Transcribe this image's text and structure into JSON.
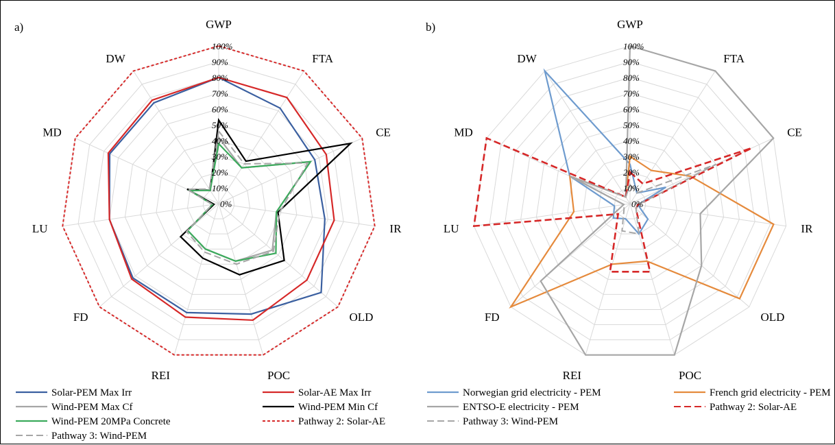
{
  "chart_data": [
    {
      "panel_label": "a)",
      "type": "radar",
      "axes": [
        "GWP",
        "FTA",
        "CE",
        "IR",
        "OLD",
        "POC",
        "REI",
        "FD",
        "LU",
        "MD",
        "DW"
      ],
      "tick_labels": [
        "0%",
        "10%",
        "20%",
        "30%",
        "40%",
        "50%",
        "60%",
        "70%",
        "80%",
        "90%",
        "100%"
      ],
      "rlim": [
        0,
        100
      ],
      "grid": true,
      "legend_position": "bottom",
      "series": [
        {
          "name": "Solar-PEM Max Irr",
          "color": "#3A5FA0",
          "dash": "solid",
          "values": [
            80,
            72,
            67,
            68,
            86,
            73,
            72,
            72,
            70,
            76,
            76
          ]
        },
        {
          "name": "Solar-AE Max Irr",
          "color": "#D62828",
          "dash": "solid",
          "values": [
            80,
            80,
            75,
            74,
            74,
            77,
            75,
            73,
            70,
            77,
            78
          ]
        },
        {
          "name": "Wind-PEM Max Cf",
          "color": "#A6A6A6",
          "dash": "solid",
          "values": [
            42,
            27,
            64,
            37,
            45,
            38,
            30,
            26,
            4,
            20,
            10
          ]
        },
        {
          "name": "Wind-PEM Min Cf",
          "color": "#000000",
          "dash": "solid",
          "values": [
            53,
            32,
            92,
            38,
            55,
            47,
            36,
            32,
            3,
            22,
            10
          ]
        },
        {
          "name": "Wind-PEM 20MPa Concrete",
          "color": "#3BAA5C",
          "dash": "solid",
          "values": [
            38,
            27,
            64,
            37,
            48,
            38,
            30,
            26,
            4,
            20,
            10
          ]
        },
        {
          "name": "Pathway 2: Solar-AE",
          "color": "#D62828",
          "dash": "dotted",
          "values": [
            100,
            100,
            100,
            100,
            100,
            100,
            100,
            100,
            100,
            100,
            100
          ]
        },
        {
          "name": "Pathway 3: Wind-PEM",
          "color": "#A6A6A6",
          "dash": "dashed",
          "values": [
            46,
            30,
            62,
            39,
            46,
            40,
            32,
            27,
            4,
            22,
            11
          ]
        }
      ]
    },
    {
      "panel_label": "b)",
      "type": "radar",
      "axes": [
        "GWP",
        "FTA",
        "CE",
        "IR",
        "OLD",
        "POC",
        "REI",
        "FD",
        "LU",
        "MD",
        "DW"
      ],
      "tick_labels": [
        "0%",
        "10%",
        "20%",
        "30%",
        "40%",
        "50%",
        "60%",
        "70%",
        "80%",
        "90%",
        "100%"
      ],
      "rlim": [
        0,
        100
      ],
      "grid": true,
      "legend_position": "bottom",
      "series": [
        {
          "name": "Norwegian grid electricity - PEM",
          "color": "#6E9BCE",
          "dash": "solid",
          "values": [
            25,
            8,
            25,
            5,
            15,
            20,
            10,
            14,
            10,
            42,
            100
          ]
        },
        {
          "name": "French grid electricity - PEM",
          "color": "#E58A3C",
          "dash": "solid",
          "values": [
            30,
            25,
            42,
            92,
            92,
            38,
            40,
            100,
            36,
            42,
            5
          ]
        },
        {
          "name": "ENTSO-E electricity - PEM",
          "color": "#A6A6A6",
          "dash": "solid",
          "values": [
            100,
            100,
            100,
            45,
            60,
            100,
            100,
            75,
            4,
            42,
            5
          ]
        },
        {
          "name": "Pathway 2: Solar-AE",
          "color": "#D62828",
          "dash": "dashed",
          "values": [
            20,
            15,
            85,
            5,
            5,
            45,
            45,
            10,
            100,
            100,
            5
          ]
        },
        {
          "name": "Pathway 3: Wind-PEM",
          "color": "#A6A6A6",
          "dash": "dashed",
          "values": [
            12,
            8,
            60,
            5,
            5,
            20,
            18,
            5,
            4,
            40,
            5
          ]
        }
      ]
    }
  ]
}
